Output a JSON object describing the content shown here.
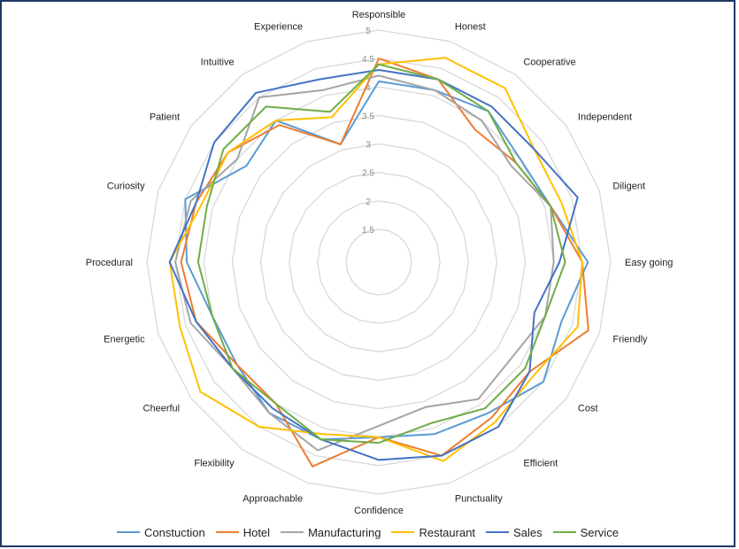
{
  "chart_data": {
    "type": "radar",
    "categories": [
      "Responsible",
      "Honest",
      "Cooperative",
      "Independent",
      "Diligent",
      "Easy going",
      "Friendly",
      "Cost",
      "Efficient",
      "Punctuality",
      "Confidence",
      "Approachable",
      "Flexibility",
      "Cheerful",
      "Energetic",
      "Procedural",
      "Curiosity",
      "Patient",
      "Intuitive",
      "Experience"
    ],
    "rlim": [
      1.5,
      5
    ],
    "ticks": [
      "1.5",
      "2",
      "2.5",
      "3",
      "3.5",
      "4",
      "4.5",
      "5"
    ],
    "tick_values": [
      1.5,
      2,
      2.5,
      3,
      3.5,
      4,
      4.5,
      5
    ],
    "grid": true,
    "legend_position": "bottom",
    "series": [
      {
        "name": "Constuction",
        "color": "#5b9bd5",
        "values": [
          4.1,
          4.1,
          4.2,
          4.0,
          4.1,
          4.6,
          4.3,
          4.5,
          4.2,
          4.1,
          4.0,
          4.2,
          4.2,
          4.0,
          4.0,
          4.3,
          4.5,
          3.8,
          4.0,
          3.1
        ]
      },
      {
        "name": "Hotel",
        "color": "#ed7d31",
        "values": [
          4.5,
          4.3,
          3.8,
          3.9,
          4.1,
          4.5,
          4.8,
          4.2,
          4.3,
          4.5,
          4.0,
          4.7,
          4.0,
          4.0,
          4.3,
          4.4,
          4.3,
          4.2,
          3.9,
          3.1
        ]
      },
      {
        "name": "Manufacturing",
        "color": "#a5a5a5",
        "values": [
          4.2,
          4.1,
          4.0,
          3.8,
          4.1,
          4.0,
          4.0,
          3.8,
          3.9,
          3.6,
          3.8,
          4.4,
          4.2,
          4.1,
          4.4,
          4.5,
          4.4,
          4.0,
          4.5,
          4.1
        ]
      },
      {
        "name": "Restaurant",
        "color": "#ffc000",
        "values": [
          4.4,
          4.7,
          4.7,
          4.3,
          4.3,
          4.5,
          4.6,
          4.3,
          4.4,
          4.6,
          4.0,
          4.1,
          4.5,
          4.8,
          4.6,
          4.6,
          4.2,
          4.2,
          4.0,
          3.6
        ]
      },
      {
        "name": "Sales",
        "color": "#4472c4",
        "values": [
          4.3,
          4.3,
          4.3,
          4.3,
          4.6,
          4.1,
          3.8,
          4.2,
          4.5,
          4.5,
          4.4,
          4.2,
          4.1,
          4.1,
          4.3,
          4.6,
          4.3,
          4.5,
          4.6,
          4.3
        ]
      },
      {
        "name": "Service",
        "color": "#70ad47",
        "values": [
          4.4,
          4.3,
          4.2,
          3.9,
          4.1,
          4.2,
          4.0,
          4.1,
          4.1,
          3.9,
          4.1,
          4.2,
          4.0,
          4.1,
          4.0,
          4.1,
          4.1,
          4.3,
          4.3,
          3.7
        ]
      }
    ]
  }
}
